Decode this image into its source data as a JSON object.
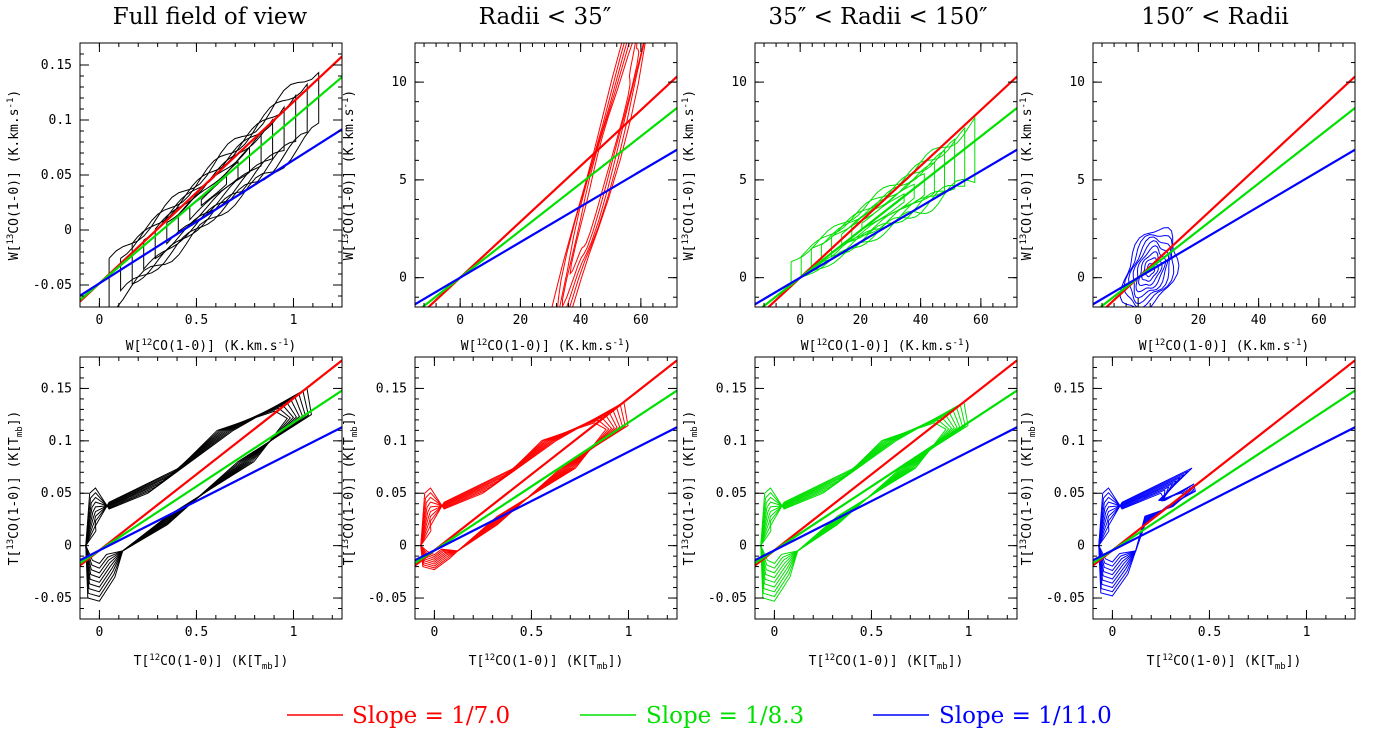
{
  "chart_data": {
    "type": "contour",
    "column_titles": [
      "Full field of view",
      "Radii < 35″",
      "35″ < Radii < 150″",
      "150″ < Radii"
    ],
    "rows": [
      {
        "ylabel": "W[13CO(1-0)] (K.km.s-1)",
        "xlabel": "W[12CO(1-0)] (K.km.s-1)",
        "panels": [
          {
            "xlim": [
              -0.1,
              1.25
            ],
            "ylim": [
              -0.07,
              0.17
            ],
            "xticks": [
              0,
              0.5,
              1
            ],
            "xtick_labels": [
              "0",
              "0.5",
              "1"
            ],
            "yticks": [
              -0.05,
              0,
              0.05,
              0.1,
              0.15
            ],
            "ytick_labels": [
              "-0.05",
              "0",
              "0.05",
              "0.1",
              "0.15"
            ]
          },
          {
            "xlim": [
              -15,
              72
            ],
            "ylim": [
              -1.5,
              12
            ],
            "xticks": [
              0,
              20,
              40,
              60
            ],
            "xtick_labels": [
              "0",
              "20",
              "40",
              "60"
            ],
            "yticks": [
              0,
              5,
              10
            ],
            "ytick_labels": [
              "0",
              "5",
              "10"
            ]
          },
          {
            "xlim": [
              -15,
              72
            ],
            "ylim": [
              -1.5,
              12
            ],
            "xticks": [
              0,
              20,
              40,
              60
            ],
            "xtick_labels": [
              "0",
              "20",
              "40",
              "60"
            ],
            "yticks": [
              0,
              5,
              10
            ],
            "ytick_labels": [
              "0",
              "5",
              "10"
            ]
          },
          {
            "xlim": [
              -15,
              72
            ],
            "ylim": [
              -1.5,
              12
            ],
            "xticks": [
              0,
              20,
              40,
              60
            ],
            "xtick_labels": [
              "0",
              "20",
              "40",
              "60"
            ],
            "yticks": [
              0,
              5,
              10
            ],
            "ytick_labels": [
              "0",
              "5",
              "10"
            ]
          }
        ]
      },
      {
        "ylabel": "T[13CO(1-0)] (K[Tmb])",
        "xlabel": "T[12CO(1-0)] (K[Tmb])",
        "panels": [
          {
            "xlim": [
              -0.1,
              1.25
            ],
            "ylim": [
              -0.07,
              0.18
            ],
            "xticks": [
              0,
              0.5,
              1
            ],
            "xtick_labels": [
              "0",
              "0.5",
              "1"
            ],
            "yticks": [
              -0.05,
              0,
              0.05,
              0.1,
              0.15
            ],
            "ytick_labels": [
              "-0.05",
              "0",
              "0.05",
              "0.1",
              "0.15"
            ]
          },
          {
            "xlim": [
              -0.1,
              1.25
            ],
            "ylim": [
              -0.07,
              0.18
            ],
            "xticks": [
              0,
              0.5,
              1
            ],
            "xtick_labels": [
              "0",
              "0.5",
              "1"
            ],
            "yticks": [
              -0.05,
              0,
              0.05,
              0.1,
              0.15
            ],
            "ytick_labels": [
              "-0.05",
              "0",
              "0.05",
              "0.1",
              "0.15"
            ]
          },
          {
            "xlim": [
              -0.1,
              1.25
            ],
            "ylim": [
              -0.07,
              0.18
            ],
            "xticks": [
              0,
              0.5,
              1
            ],
            "xtick_labels": [
              "0",
              "0.5",
              "1"
            ],
            "yticks": [
              -0.05,
              0,
              0.05,
              0.1,
              0.15
            ],
            "ytick_labels": [
              "-0.05",
              "0",
              "0.05",
              "0.1",
              "0.15"
            ]
          },
          {
            "xlim": [
              -0.1,
              1.25
            ],
            "ylim": [
              -0.07,
              0.18
            ],
            "xticks": [
              0,
              0.5,
              1
            ],
            "xtick_labels": [
              "0",
              "0.5",
              "1"
            ],
            "yticks": [
              -0.05,
              0,
              0.05,
              0.1,
              0.15
            ],
            "ytick_labels": [
              "-0.05",
              "0",
              "0.05",
              "0.1",
              "0.15"
            ]
          }
        ]
      }
    ],
    "contour_colors": [
      "#000000",
      "#ff0000",
      "#00e000",
      "#0000ff"
    ],
    "series": [
      {
        "label": "Slope = 1/7.0",
        "slope": 0.142857,
        "color": "#ff0000"
      },
      {
        "label": "Slope = 1/8.3",
        "slope": 0.120482,
        "color": "#00e000"
      },
      {
        "label": "Slope = 1/11.0",
        "slope": 0.090909,
        "color": "#0000ff"
      }
    ],
    "fit_intercepts": {
      "row0_col0": -0.0485,
      "row0_col1_3": 0.0,
      "row1": -0.0045
    },
    "legend_position": "bottom-center"
  }
}
